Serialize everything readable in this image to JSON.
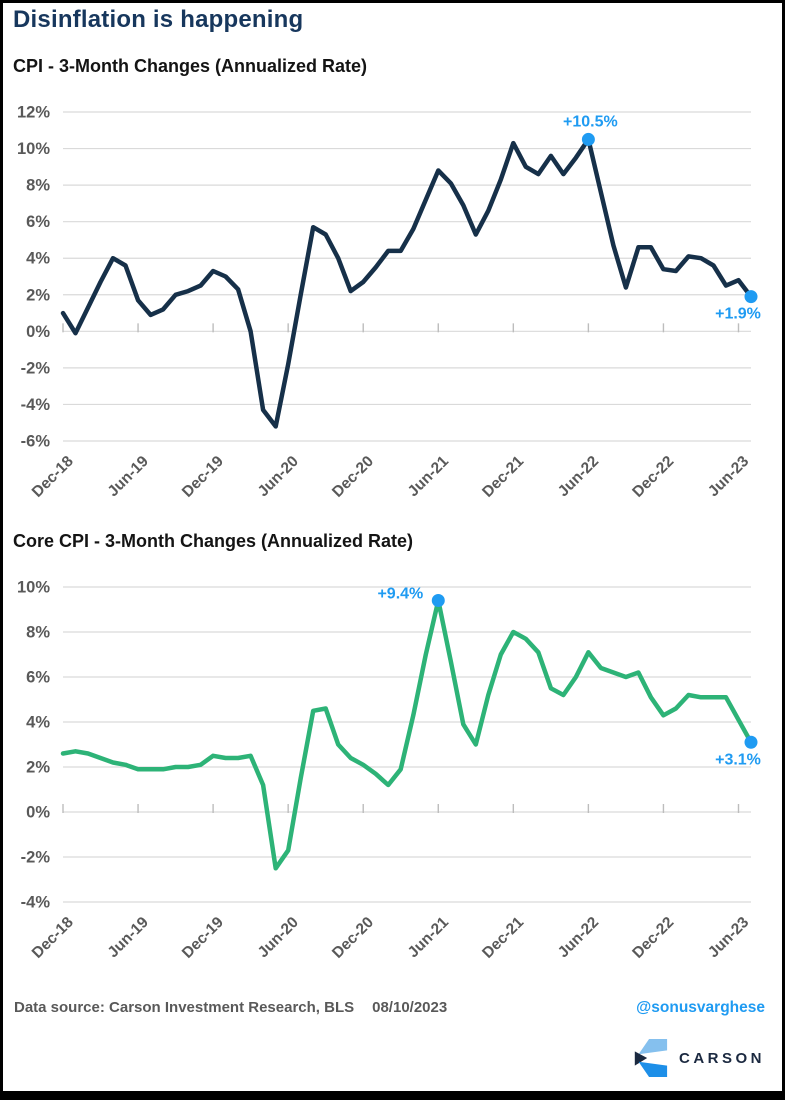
{
  "page": {
    "title": "Disinflation is happening",
    "footer": {
      "source": "Data source: Carson Investment Research, BLS",
      "date": "08/10/2023",
      "handle": "@sonusvarghese",
      "logo_text": "CARSON"
    }
  },
  "colors": {
    "title_navy": "#17375d",
    "gridline": "#dadada",
    "tick_mark": "#bdbdbd",
    "axis_label_gray": "#595959",
    "annotation_blue": "#1f9bf2",
    "handle_blue": "#1f9bf2",
    "cpi_line": "#163049",
    "core_cpi_line": "#2db377",
    "logo_navy": "#1b2940",
    "logo_light_blue": "#85c0ee",
    "logo_mid_blue": "#1d8fe8"
  },
  "chart_data": [
    {
      "type": "line",
      "title": "CPI - 3-Month Changes (Annualized Rate)",
      "x_frequency": "monthly",
      "x_start": "Dec-18",
      "x_tick_labels": [
        "Dec-18",
        "Jun-19",
        "Dec-19",
        "Jun-20",
        "Dec-20",
        "Jun-21",
        "Dec-21",
        "Jun-22",
        "Dec-22",
        "Jun-23"
      ],
      "x_tick_every_n_months": 6,
      "y_ticks": [
        12,
        10,
        8,
        6,
        4,
        2,
        0,
        -2,
        -4,
        -6
      ],
      "ylim": [
        -6,
        12
      ],
      "y_unit": "%",
      "grid": true,
      "legend": false,
      "line_color": "#163049",
      "values": [
        1.0,
        -0.1,
        1.3,
        2.7,
        4.0,
        3.6,
        1.7,
        0.9,
        1.2,
        2.0,
        2.2,
        2.5,
        3.3,
        3.0,
        2.3,
        0.0,
        -4.3,
        -5.2,
        -1.8,
        2.0,
        5.7,
        5.3,
        4.0,
        2.2,
        2.7,
        3.5,
        4.4,
        4.4,
        5.6,
        7.2,
        8.8,
        8.1,
        6.9,
        5.3,
        6.6,
        8.3,
        10.3,
        9.0,
        8.6,
        9.6,
        8.6,
        9.5,
        10.5,
        7.6,
        4.7,
        2.4,
        4.6,
        4.6,
        3.4,
        3.3,
        4.1,
        4.0,
        3.6,
        2.5,
        2.8,
        1.9
      ],
      "annotations": [
        {
          "month_index": 42,
          "value": 10.5,
          "label": "+10.5%",
          "placement": "above"
        },
        {
          "month_index": 55,
          "value": 1.9,
          "label": "+1.9%",
          "placement": "below-left"
        }
      ]
    },
    {
      "type": "line",
      "title": "Core CPI - 3-Month Changes (Annualized Rate)",
      "x_frequency": "monthly",
      "x_start": "Dec-18",
      "x_tick_labels": [
        "Dec-18",
        "Jun-19",
        "Dec-19",
        "Jun-20",
        "Dec-20",
        "Jun-21",
        "Dec-21",
        "Jun-22",
        "Dec-22",
        "Jun-23"
      ],
      "x_tick_every_n_months": 6,
      "y_ticks": [
        10,
        8,
        6,
        4,
        2,
        0,
        -2,
        -4
      ],
      "ylim": [
        -4,
        10
      ],
      "y_unit": "%",
      "grid": true,
      "legend": false,
      "line_color": "#2db377",
      "values": [
        2.6,
        2.7,
        2.6,
        2.4,
        2.2,
        2.1,
        1.9,
        1.9,
        1.9,
        2.0,
        2.0,
        2.1,
        2.5,
        2.4,
        2.4,
        2.5,
        1.2,
        -2.5,
        -1.7,
        1.5,
        4.5,
        4.6,
        3.0,
        2.4,
        2.1,
        1.7,
        1.2,
        1.9,
        4.3,
        7.0,
        9.4,
        6.7,
        3.9,
        3.0,
        5.2,
        7.0,
        8.0,
        7.7,
        7.1,
        5.5,
        5.2,
        6.0,
        7.1,
        6.4,
        6.2,
        6.0,
        6.2,
        5.1,
        4.3,
        4.6,
        5.2,
        5.1,
        5.1,
        5.1,
        4.1,
        3.1
      ],
      "annotations": [
        {
          "month_index": 30,
          "value": 9.4,
          "label": "+9.4%",
          "placement": "left"
        },
        {
          "month_index": 55,
          "value": 3.1,
          "label": "+3.1%",
          "placement": "below-left"
        }
      ]
    }
  ]
}
